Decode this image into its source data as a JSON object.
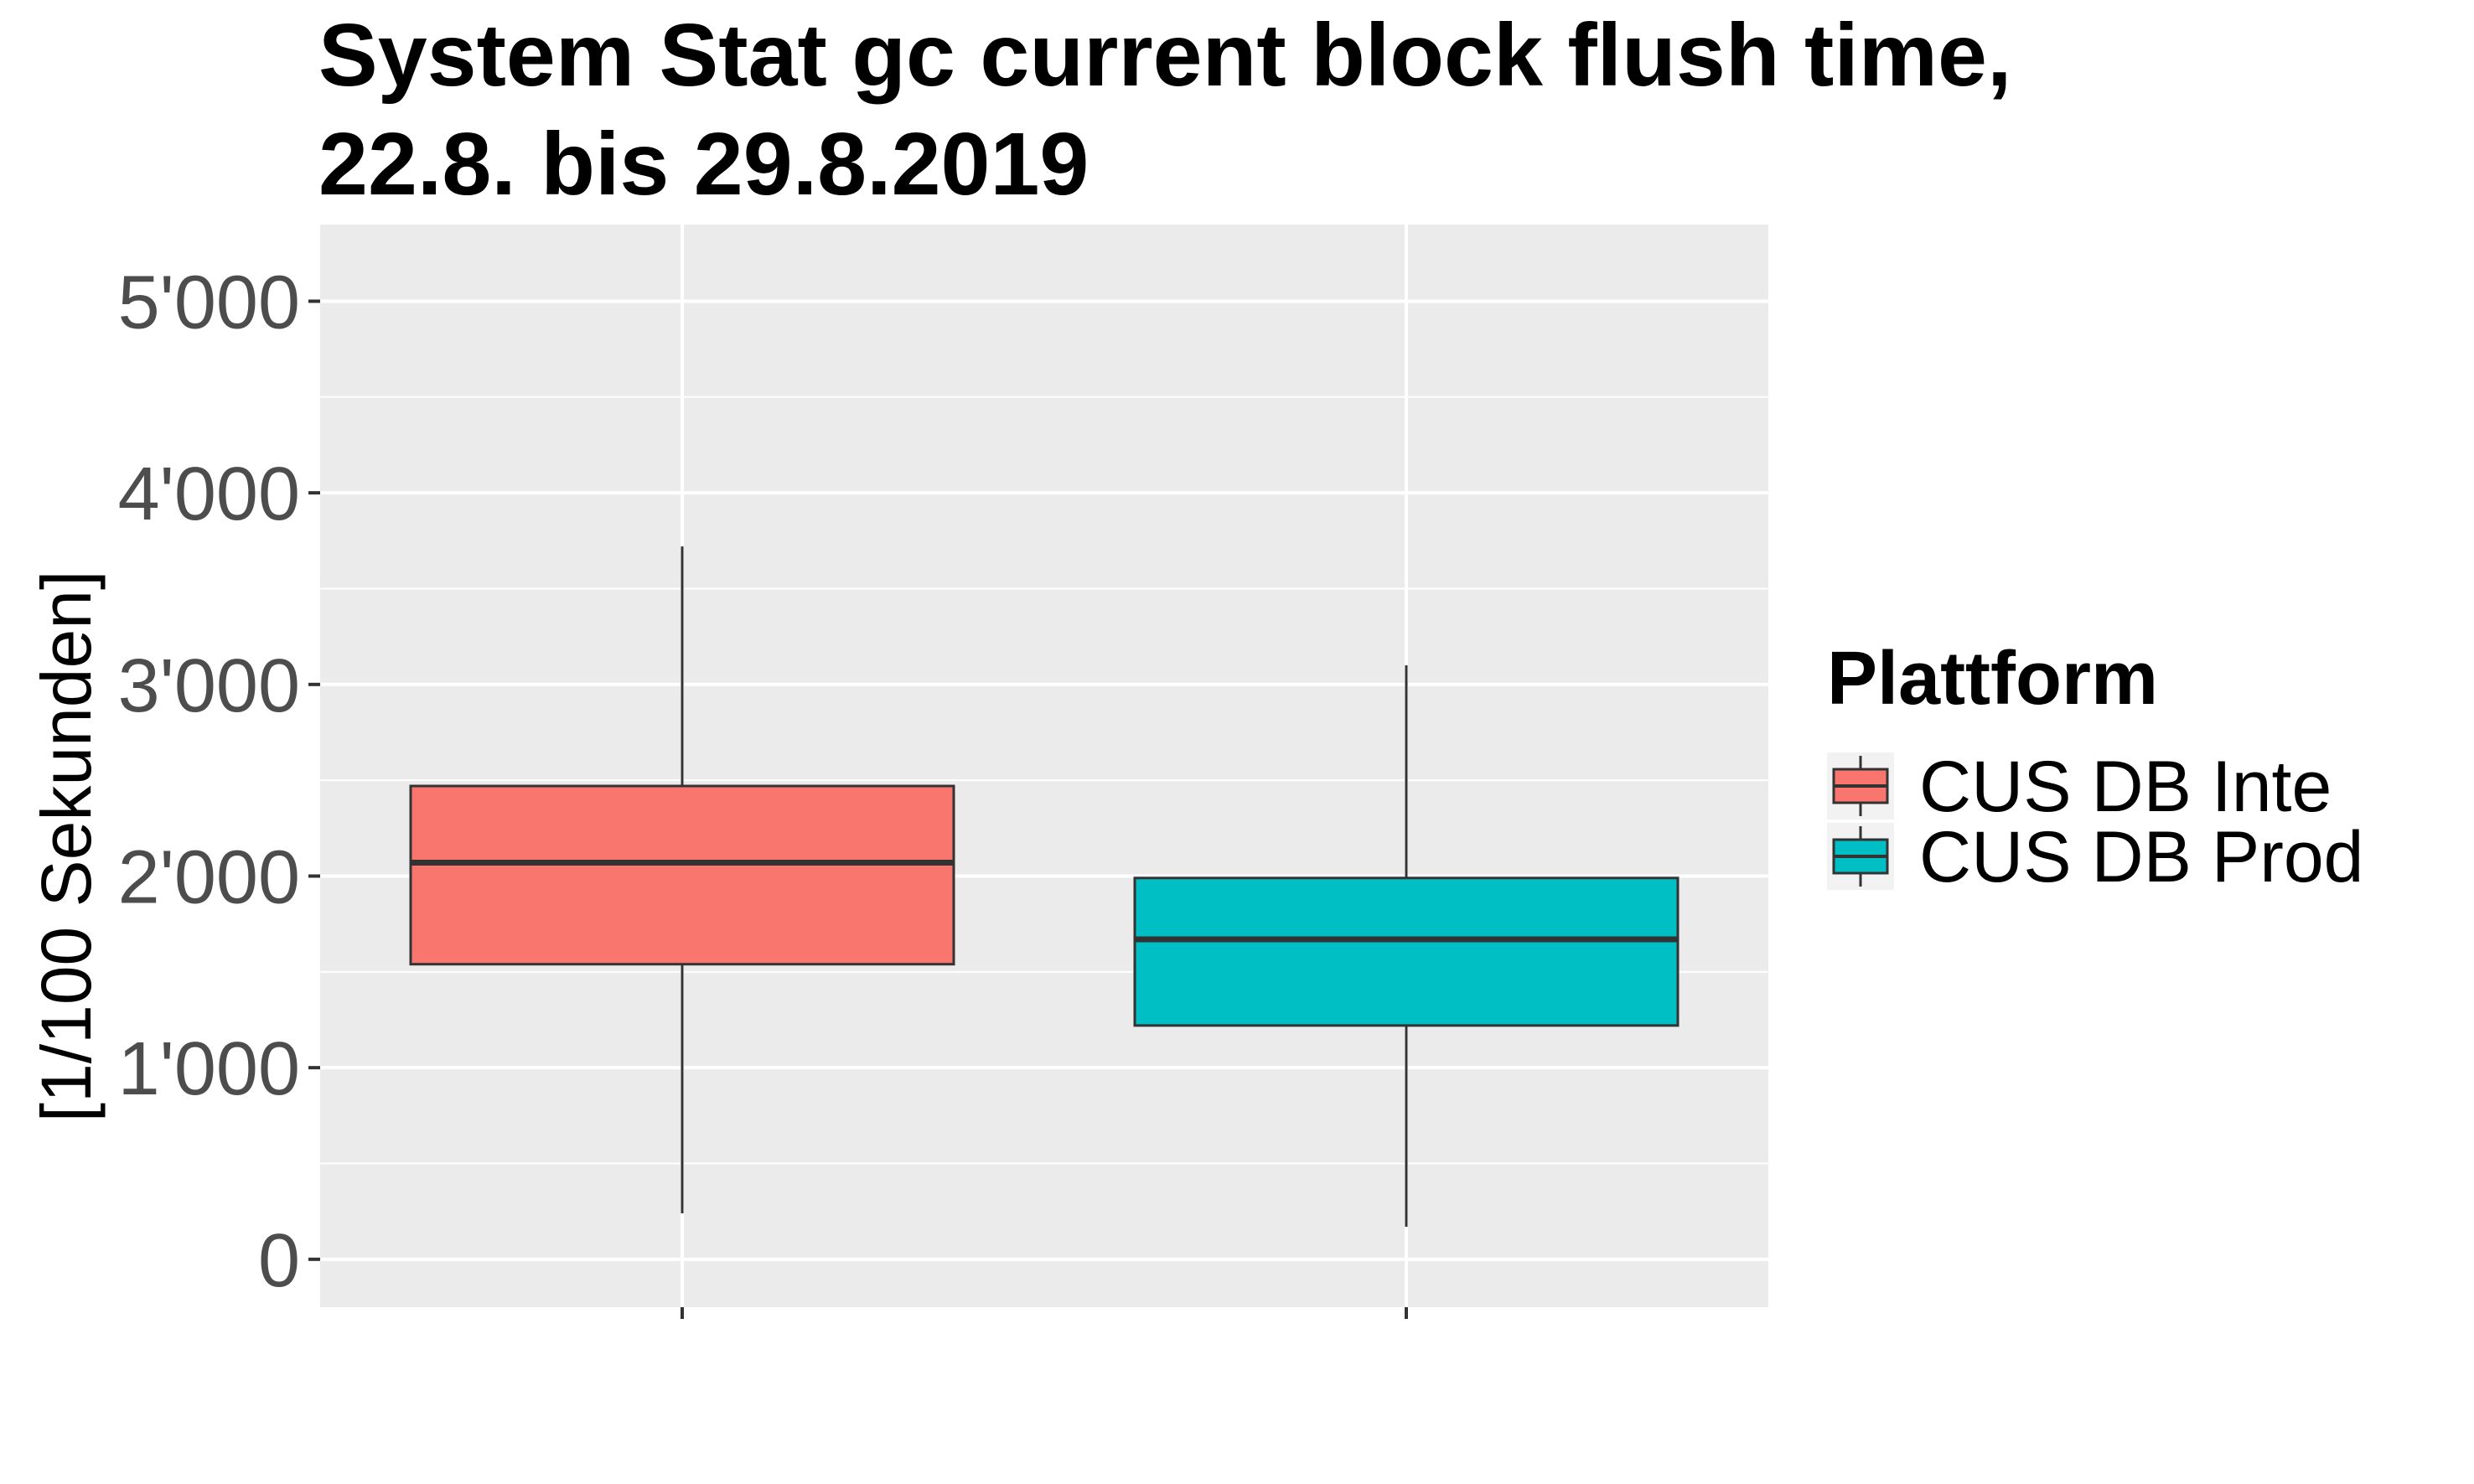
{
  "chart_data": {
    "type": "boxplot",
    "title_line1": "System Stat gc current block flush time,",
    "title_line2": "22.8. bis 29.8.2019",
    "xlabel": "",
    "ylabel": "[1/100 Sekunden]",
    "ylim": [
      -250,
      5400
    ],
    "yticks": [
      0,
      1000,
      2000,
      3000,
      4000,
      5000
    ],
    "ytick_labels": [
      "0",
      "1'000",
      "2'000",
      "3'000",
      "4'000",
      "5'000"
    ],
    "grid": true,
    "legend": {
      "title": "Plattform",
      "position": "right",
      "labels": [
        "CUS DB Inte",
        "CUS DB Prod"
      ]
    },
    "series": [
      {
        "name": "CUS DB Inte",
        "color": "#F8766D",
        "min": 240,
        "q1": 1540,
        "median": 2070,
        "q3": 2470,
        "max": 3720
      },
      {
        "name": "CUS DB Prod",
        "color": "#00BFC4",
        "min": 170,
        "q1": 1220,
        "median": 1670,
        "q3": 1990,
        "max": 3100
      }
    ],
    "colors": {
      "panel": "#EBEBEB",
      "grid": "#FFFFFF",
      "outline": "#333333",
      "whisker": "#333333"
    }
  }
}
